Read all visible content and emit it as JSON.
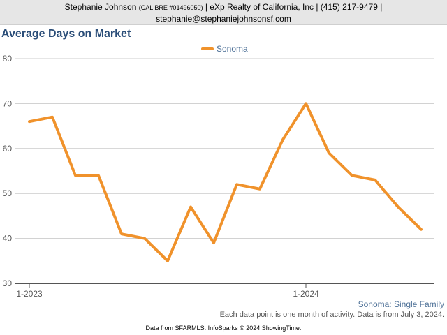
{
  "header": {
    "agent_name": "Stephanie Johnson",
    "license": "(CAL BRE #01496050)",
    "company_phone": "| eXp Realty of California, Inc | (415) 217-9479 |",
    "email": "stephanie@stephaniejohnsonsf.com"
  },
  "chart_title": "Average Days on Market",
  "captions": {
    "region_type": "Sonoma: Single Family",
    "note": "Each data point is one month of activity. Data is from July 3, 2024."
  },
  "footer": "Data from SFARMLS. InfoSparks © 2024 ShowingTime.",
  "colors": {
    "series": "#f0922b",
    "title": "#2a4d78",
    "caption": "#4c6f96",
    "grid": "#cccccc",
    "axis": "#555555"
  },
  "chart_data": {
    "type": "line",
    "title": "Average Days on Market",
    "x": [
      "2023-01",
      "2023-02",
      "2023-03",
      "2023-04",
      "2023-05",
      "2023-06",
      "2023-07",
      "2023-08",
      "2023-09",
      "2023-10",
      "2023-11",
      "2023-12",
      "2024-01",
      "2024-02",
      "2024-03",
      "2024-04",
      "2024-05",
      "2024-06"
    ],
    "x_tick_labels": [
      {
        "at": "2023-01",
        "label": "1-2023"
      },
      {
        "at": "2024-01",
        "label": "1-2024"
      }
    ],
    "series": [
      {
        "name": "Sonoma",
        "color": "#f0922b",
        "values": [
          66,
          67,
          54,
          54,
          41,
          40,
          35,
          47,
          39,
          52,
          51,
          62,
          70,
          59,
          54,
          53,
          47,
          42
        ]
      }
    ],
    "ylim": [
      30,
      80
    ],
    "yticks": [
      30,
      40,
      50,
      60,
      70,
      80
    ],
    "grid": true,
    "legend": "top-center"
  }
}
